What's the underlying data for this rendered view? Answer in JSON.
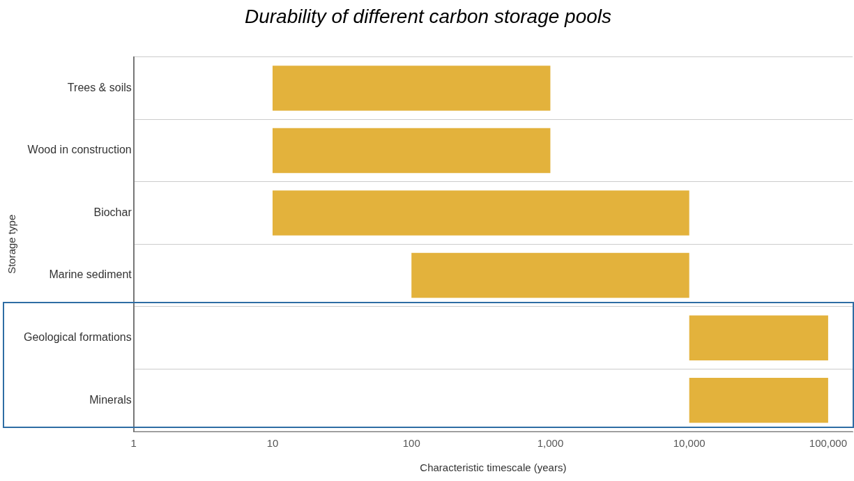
{
  "chart_data": {
    "type": "bar",
    "orientation": "horizontal",
    "title": "Durability of different carbon storage pools",
    "xlabel": "Characteristic timescale (years)",
    "ylabel": "Storage type",
    "categories": [
      "Trees & soils",
      "Wood in construction",
      "Biochar",
      "Marine sediment",
      "Geological formations",
      "Minerals"
    ],
    "base": [
      10,
      10,
      10,
      100,
      10000,
      10000
    ],
    "values": [
      990,
      990,
      9990,
      9900,
      90000,
      90000
    ],
    "color": "#e3b23c",
    "log": "x",
    "xlim": [
      1,
      150000
    ],
    "xticks": [
      1,
      10,
      {
        "value": 100,
        "label": "100"
      },
      {
        "value": 1000,
        "label": "1,000"
      },
      {
        "value": 10000,
        "label": "10,000"
      },
      {
        "value": 100000,
        "label": "100,000"
      }
    ],
    "grid": "y",
    "legend": false
  }
}
